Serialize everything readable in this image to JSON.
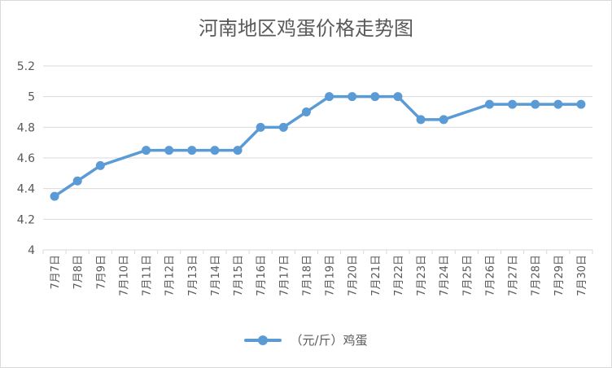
{
  "chart_data": {
    "type": "line",
    "title": "河南地区鸡蛋价格走势图",
    "categories": [
      "7月7日",
      "7月8日",
      "7月9日",
      "7月10日",
      "7月11日",
      "7月12日",
      "7月13日",
      "7月14日",
      "7月15日",
      "7月16日",
      "7月17日",
      "7月18日",
      "7月19日",
      "7月20日",
      "7月21日",
      "7月22日",
      "7月23日",
      "7月24日",
      "7月25日",
      "7月26日",
      "7月27日",
      "7月28日",
      "7月29日",
      "7月30日"
    ],
    "series": [
      {
        "name": "（元/斤）鸡蛋",
        "color": "#5b9bd5",
        "values": [
          4.35,
          4.45,
          4.55,
          null,
          4.65,
          4.65,
          4.65,
          4.65,
          4.65,
          4.8,
          4.8,
          4.9,
          5.0,
          5.0,
          5.0,
          5.0,
          4.85,
          4.85,
          null,
          4.95,
          4.95,
          4.95,
          4.95,
          4.95
        ]
      }
    ],
    "ylim": [
      4,
      5.2
    ],
    "yticks": [
      4,
      4.2,
      4.4,
      4.6,
      4.8,
      5,
      5.2
    ],
    "grid": true,
    "legend": "bottom"
  }
}
